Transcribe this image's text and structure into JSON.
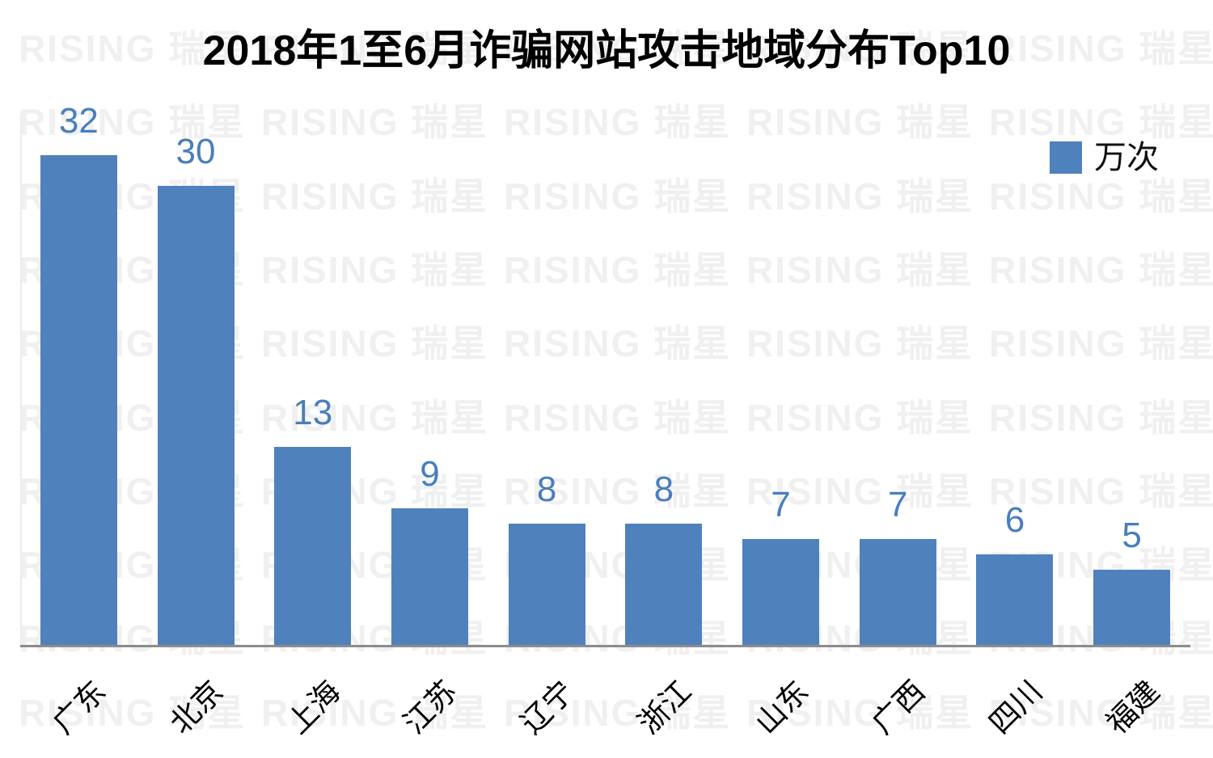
{
  "title": "2018年1至6月诈骗网站攻击地域分布Top10",
  "watermark": {
    "text": "RISING 瑞星"
  },
  "legend": {
    "label": "万次",
    "swatch_color": "#4f81bd"
  },
  "chart_data": {
    "type": "bar",
    "title": "2018年1至6月诈骗网站攻击地域分布Top10",
    "categories": [
      "广东",
      "北京",
      "上海",
      "江苏",
      "辽宁",
      "浙江",
      "山东",
      "广西",
      "四川",
      "福建"
    ],
    "series": [
      {
        "name": "万次",
        "values": [
          32,
          30,
          13,
          9,
          8,
          8,
          7,
          7,
          6,
          5
        ]
      }
    ],
    "xlabel": "",
    "ylabel": "",
    "unit": "万次",
    "ylim": [
      0,
      34
    ],
    "y_axis_shown": false,
    "grid": false,
    "data_labels_shown": true,
    "x_tick_rotation_deg": 45,
    "legend_position": "top-right",
    "bar_color": "#4f81bd",
    "value_label_color": "#4a7ebc",
    "axis_line_color": "#8c8c8c",
    "watermark_color": "#f0f0f0"
  }
}
